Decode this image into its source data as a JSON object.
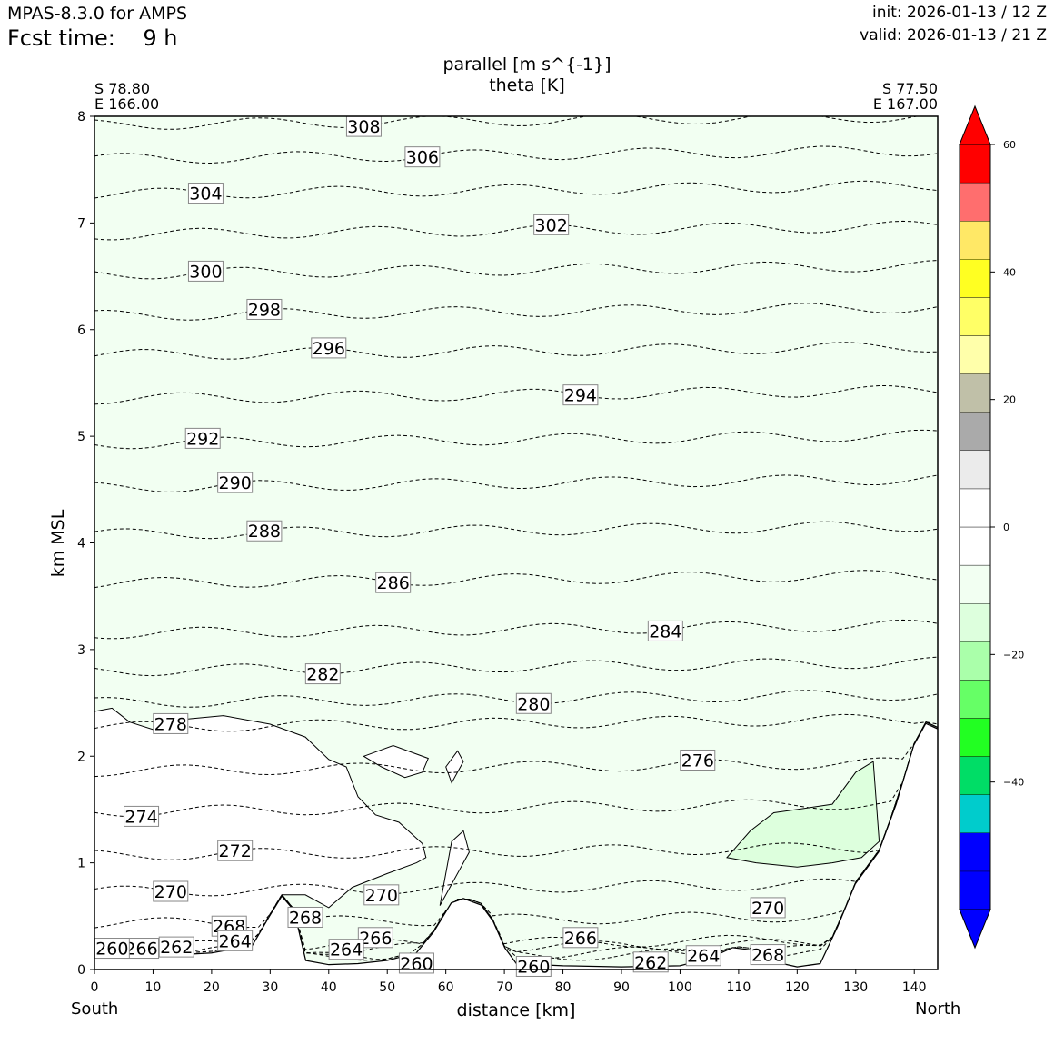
{
  "header": {
    "model": "MPAS-8.3.0 for AMPS",
    "fcst_label": "Fcst time:",
    "fcst_value": "9 h",
    "init": "init: 2026-01-13 / 12 Z",
    "valid": "valid: 2026-01-13 / 21 Z"
  },
  "corners": {
    "left_lat": "S 78.80",
    "left_lon": "E 166.00",
    "right_lat": "S 77.50",
    "right_lon": "E 167.00"
  },
  "direction": {
    "left": "South",
    "right": "North"
  },
  "chart_data": {
    "type": "contour",
    "title_line1": "parallel [m s^{-1}]",
    "title_line2": "theta [K]",
    "xlabel": "distance [km]",
    "ylabel": "km MSL",
    "xlim": [
      0,
      144
    ],
    "ylim": [
      0,
      8
    ],
    "x_ticks": [
      0,
      10,
      20,
      30,
      40,
      50,
      60,
      70,
      80,
      90,
      100,
      110,
      120,
      130,
      140
    ],
    "y_ticks": [
      0,
      1,
      2,
      3,
      4,
      5,
      6,
      7,
      8
    ],
    "terrain": [
      [
        0,
        0.12
      ],
      [
        10,
        0.12
      ],
      [
        20,
        0.15
      ],
      [
        27,
        0.22
      ],
      [
        30,
        0.5
      ],
      [
        32,
        0.68
      ],
      [
        34,
        0.55
      ],
      [
        36,
        0.08
      ],
      [
        40,
        0.04
      ],
      [
        45,
        0.05
      ],
      [
        50,
        0.08
      ],
      [
        55,
        0.15
      ],
      [
        58,
        0.35
      ],
      [
        61,
        0.62
      ],
      [
        63,
        0.66
      ],
      [
        66,
        0.6
      ],
      [
        68,
        0.45
      ],
      [
        70,
        0.2
      ],
      [
        72,
        0.05
      ],
      [
        80,
        0.03
      ],
      [
        90,
        0.02
      ],
      [
        100,
        0.03
      ],
      [
        105,
        0.1
      ],
      [
        109,
        0.2
      ],
      [
        112,
        0.18
      ],
      [
        115,
        0.08
      ],
      [
        120,
        0.02
      ],
      [
        124,
        0.05
      ],
      [
        127,
        0.4
      ],
      [
        130,
        0.8
      ],
      [
        134,
        1.1
      ],
      [
        137,
        1.55
      ],
      [
        140,
        2.1
      ],
      [
        142,
        2.3
      ],
      [
        144,
        2.25
      ]
    ],
    "theta_isentropes": [
      {
        "level": 308,
        "base_km": 7.92,
        "label_x_km": 46
      },
      {
        "level": 306,
        "base_km": 7.6,
        "label_x_km": 56
      },
      {
        "level": 304,
        "base_km": 7.27,
        "label_x_km": 19
      },
      {
        "level": 302,
        "base_km": 6.89,
        "label_x_km": 78
      },
      {
        "level": 300,
        "base_km": 6.52,
        "label_x_km": 19
      },
      {
        "level": 298,
        "base_km": 6.13,
        "label_x_km": 29
      },
      {
        "level": 296,
        "base_km": 5.76,
        "label_x_km": 40
      },
      {
        "level": 294,
        "base_km": 5.35,
        "label_x_km": 83
      },
      {
        "level": 292,
        "base_km": 4.93,
        "label_x_km": 18.5
      },
      {
        "level": 290,
        "base_km": 4.52,
        "label_x_km": 24
      },
      {
        "level": 288,
        "base_km": 4.08,
        "label_x_km": 29
      },
      {
        "level": 286,
        "base_km": 3.62,
        "label_x_km": 51
      },
      {
        "level": 284,
        "base_km": 3.15,
        "label_x_km": 97.5
      },
      {
        "level": 282,
        "base_km": 2.8,
        "label_x_km": 39
      },
      {
        "level": 280,
        "base_km": 2.5,
        "label_x_km": 75
      },
      {
        "level": 278,
        "base_km": 2.27,
        "label_x_km": 13
      },
      {
        "level": 276,
        "base_km": 1.86,
        "label_x_km": 103
      },
      {
        "level": 274,
        "base_km": 1.48,
        "label_x_km": 8
      },
      {
        "level": 272,
        "base_km": 1.07,
        "label_x_km": 24
      },
      {
        "level": 270,
        "base_km": 0.73,
        "label_x_km": 13
      },
      {
        "level": 268,
        "base_km": 0.43,
        "label_x_km": 23
      },
      {
        "level": 266,
        "base_km": 0.21,
        "label_x_km": 8
      },
      {
        "level": 264,
        "base_km": 0.17,
        "label_x_km": 24
      },
      {
        "level": 262,
        "base_km": 0.11,
        "label_x_km": 14
      },
      {
        "level": 260,
        "base_km": 0.09,
        "label_x_km": 3
      }
    ],
    "extra_theta_labels": [
      {
        "level": 270,
        "x_km": 49,
        "y_km": 0.7
      },
      {
        "level": 270,
        "x_km": 115,
        "y_km": 0.58
      },
      {
        "level": 268,
        "x_km": 36,
        "y_km": 0.49
      },
      {
        "level": 268,
        "x_km": 115,
        "y_km": 0.14
      },
      {
        "level": 266,
        "x_km": 48,
        "y_km": 0.3
      },
      {
        "level": 266,
        "x_km": 83,
        "y_km": 0.3
      },
      {
        "level": 264,
        "x_km": 43,
        "y_km": 0.19
      },
      {
        "level": 264,
        "x_km": 104,
        "y_km": 0.13
      },
      {
        "level": 262,
        "x_km": 95,
        "y_km": 0.07
      },
      {
        "level": 260,
        "x_km": 55,
        "y_km": 0.06
      },
      {
        "level": 260,
        "x_km": 75,
        "y_km": 0.03
      }
    ],
    "colorbar": {
      "colors": [
        "#0000ff",
        "#0000ff",
        "#0000ff",
        "#00cccc",
        "#00dd66",
        "#22ff22",
        "#66ff66",
        "#aaffaa",
        "#ddffdd",
        "#f2fff2",
        "#ffffff",
        "#ffffff",
        "#ebebeb",
        "#aaaaaa",
        "#c0c0a8",
        "#ffffaa",
        "#ffff66",
        "#ffff22",
        "#ffe866",
        "#ff6e6e",
        "#ff0000",
        "#ff0000"
      ],
      "tick_values": [
        -40,
        -20,
        0,
        20,
        40,
        60
      ],
      "tick_labels": [
        "−40",
        "−20",
        "0",
        "20",
        "40",
        "60"
      ],
      "range": [
        -60,
        60
      ],
      "extend": "both"
    },
    "shading": {
      "background_bin": "-10 to -5",
      "zero_region_boundary": [
        [
          0,
          2.42
        ],
        [
          3,
          2.45
        ],
        [
          6,
          2.32
        ],
        [
          10,
          2.25
        ],
        [
          16,
          2.35
        ],
        [
          22,
          2.38
        ],
        [
          30,
          2.3
        ],
        [
          36,
          2.18
        ],
        [
          40,
          1.97
        ],
        [
          43,
          1.9
        ],
        [
          45,
          1.62
        ],
        [
          48,
          1.45
        ],
        [
          52,
          1.38
        ],
        [
          56,
          1.18
        ],
        [
          56.6,
          1.05
        ],
        [
          55,
          1.0
        ],
        [
          50,
          0.9
        ],
        [
          44,
          0.77
        ],
        [
          40,
          0.58
        ],
        [
          36,
          0.7
        ],
        [
          32,
          0.7
        ],
        [
          30,
          0.5
        ]
      ],
      "minus_bin_region": [
        [
          108,
          1.05
        ],
        [
          112,
          1.3
        ],
        [
          116,
          1.47
        ],
        [
          120,
          1.5
        ],
        [
          126,
          1.55
        ],
        [
          130,
          1.85
        ],
        [
          133,
          1.95
        ],
        [
          134,
          1.2
        ],
        [
          131,
          1.05
        ],
        [
          126,
          1.0
        ],
        [
          120,
          0.96
        ],
        [
          113,
          1.0
        ]
      ]
    }
  }
}
